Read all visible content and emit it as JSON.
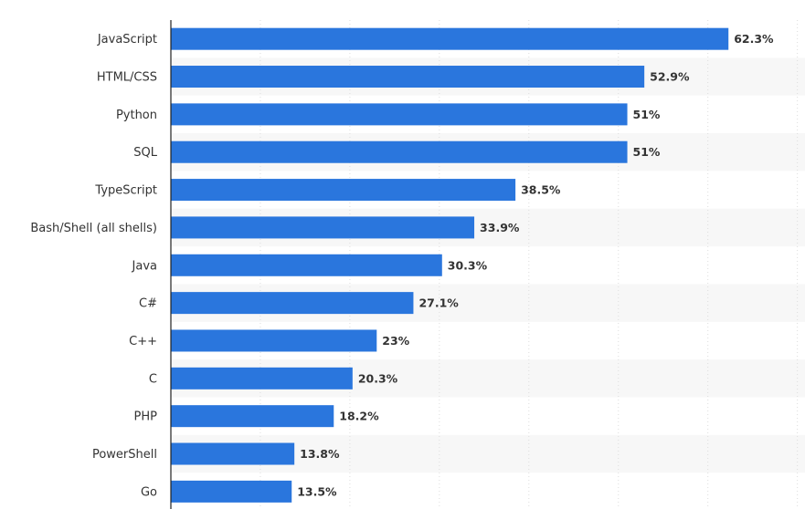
{
  "chart_data": {
    "type": "bar",
    "orientation": "horizontal",
    "categories": [
      "JavaScript",
      "HTML/CSS",
      "Python",
      "SQL",
      "TypeScript",
      "Bash/Shell (all shells)",
      "Java",
      "C#",
      "C++",
      "C",
      "PHP",
      "PowerShell",
      "Go"
    ],
    "values": [
      62.3,
      52.9,
      51,
      51,
      38.5,
      33.9,
      30.3,
      27.1,
      23,
      20.3,
      18.2,
      13.8,
      13.5
    ],
    "data_labels": [
      "62.3%",
      "52.9%",
      "51%",
      "51%",
      "38.5%",
      "33.9%",
      "30.3%",
      "27.1%",
      "23%",
      "20.3%",
      "18.2%",
      "13.8%",
      "13.5%"
    ],
    "title": "",
    "xlabel": "",
    "ylabel": "",
    "xlim": [
      0,
      70
    ],
    "grid": true,
    "legend": "none",
    "colors": {
      "bar": "#2a76dd",
      "band": "#f7f7f7",
      "grid": "#dddddd",
      "axis": "#222222",
      "text": "#333333"
    }
  }
}
